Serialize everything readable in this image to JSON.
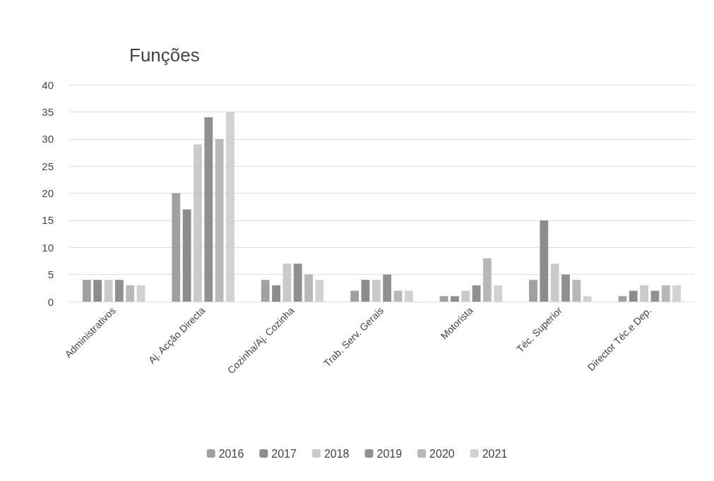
{
  "chart_data": {
    "type": "bar",
    "title": "Funções",
    "categories": [
      "Administrativos",
      "Aj. Acção Directa",
      "Cozinha/Aj. Cozinha",
      "Trab. Serv. Gerais",
      "Motorista",
      "Téc. Superior",
      "Director Téc.e Dep."
    ],
    "series": [
      {
        "name": "2016",
        "color": "#a0a0a0",
        "values": [
          4,
          20,
          4,
          2,
          1,
          4,
          1
        ]
      },
      {
        "name": "2017",
        "color": "#8c8c8c",
        "values": [
          4,
          17,
          3,
          4,
          1,
          15,
          2
        ]
      },
      {
        "name": "2018",
        "color": "#cacaca",
        "values": [
          4,
          29,
          7,
          4,
          2,
          7,
          3
        ]
      },
      {
        "name": "2019",
        "color": "#909090",
        "values": [
          4,
          34,
          7,
          5,
          3,
          5,
          2
        ]
      },
      {
        "name": "2020",
        "color": "#b8b8b8",
        "values": [
          3,
          30,
          5,
          2,
          8,
          4,
          3
        ]
      },
      {
        "name": "2021",
        "color": "#d2d2d2",
        "values": [
          3,
          35,
          4,
          2,
          3,
          1,
          3
        ]
      }
    ],
    "ylim": [
      0,
      40
    ],
    "yticks": [
      0,
      5,
      10,
      15,
      20,
      25,
      30,
      35,
      40
    ],
    "grid": "y",
    "legend": "bottom"
  }
}
